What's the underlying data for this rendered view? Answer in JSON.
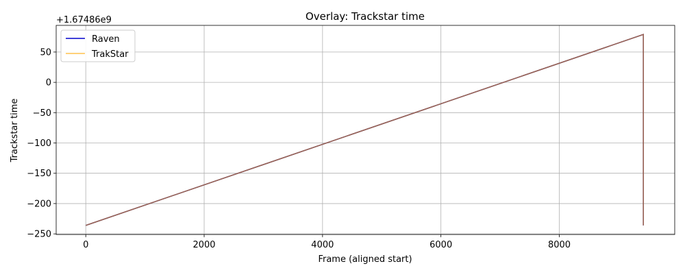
{
  "chart_data": {
    "type": "line",
    "title": "Overlay: Trackstar time",
    "xlabel": "Frame (aligned start)",
    "ylabel": "Trackstar time",
    "y_offset_label": "+1.67486e9",
    "xlim": [
      -500,
      9950
    ],
    "ylim": [
      -251,
      94
    ],
    "x_ticks": [
      0,
      2000,
      4000,
      6000,
      8000
    ],
    "x_tick_labels": [
      "0",
      "2000",
      "4000",
      "6000",
      "8000"
    ],
    "y_ticks": [
      50,
      0,
      -50,
      -100,
      -150,
      -200,
      -250
    ],
    "y_tick_labels": [
      "50",
      "0",
      "−50",
      "−100",
      "−150",
      "−200",
      "−250"
    ],
    "grid": true,
    "legend_position": "upper-left",
    "series": [
      {
        "name": "Raven",
        "color": "#0000cc",
        "x": [
          0,
          9420,
          9420
        ],
        "y": [
          -236,
          79,
          -236
        ]
      },
      {
        "name": "TrakStar",
        "color": "#ffa500",
        "x": [
          0,
          9420,
          9420
        ],
        "y": [
          -236,
          79,
          -236
        ]
      }
    ]
  }
}
